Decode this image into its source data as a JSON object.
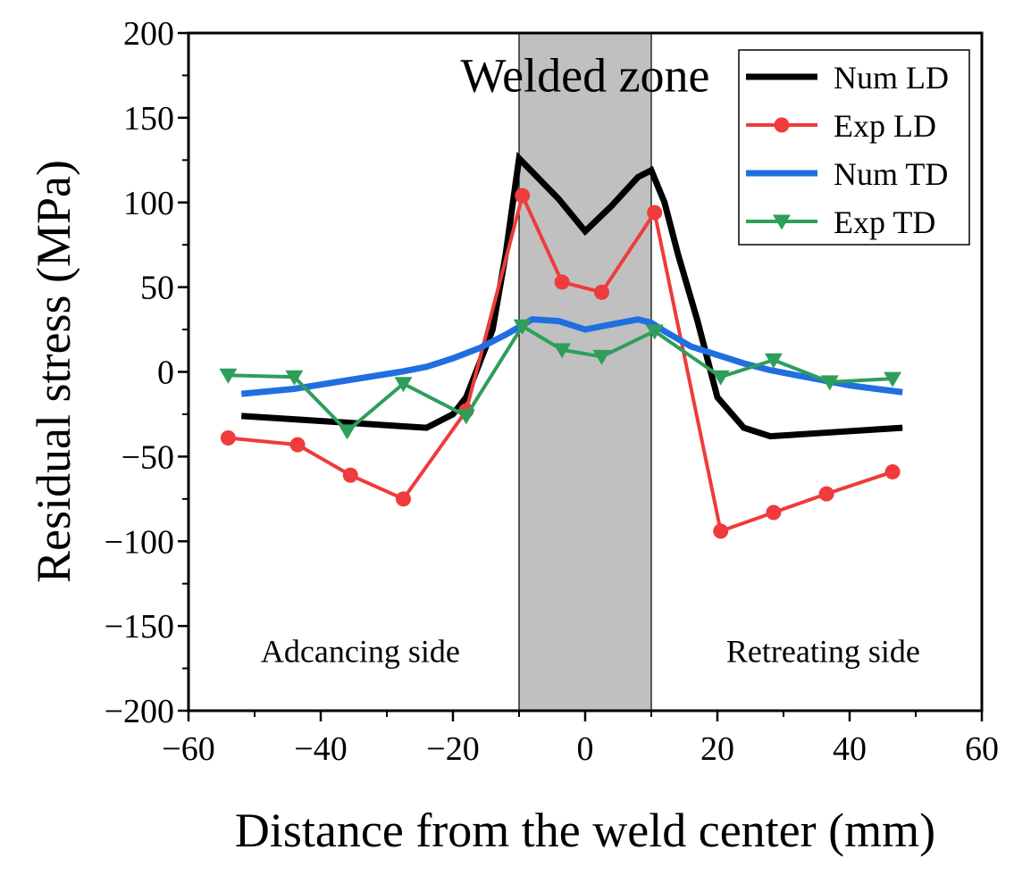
{
  "chart_data": {
    "type": "line",
    "xlabel": "Distance from the weld center (mm)",
    "ylabel": "Residual stress (MPa)",
    "xlim": [
      -60,
      60
    ],
    "ylim": [
      -200,
      200
    ],
    "xticks": [
      -60,
      -40,
      -20,
      0,
      20,
      40,
      60
    ],
    "yticks": [
      -200,
      -150,
      -100,
      -50,
      0,
      50,
      100,
      150,
      200
    ],
    "xtick_labels": [
      "−60",
      "−40",
      "−20",
      "0",
      "20",
      "40",
      "60"
    ],
    "ytick_labels": [
      "−200",
      "−150",
      "−100",
      "−50",
      "0",
      "50",
      "100",
      "150",
      "200"
    ],
    "shaded_region": {
      "x_range": [
        -10,
        10
      ],
      "color": "#c0c0c0",
      "label": "Welded zone"
    },
    "annotations": [
      {
        "text": "Welded zone",
        "x": 0,
        "y": 175
      },
      {
        "text": "Adcancing side",
        "x": -34,
        "y": -165
      },
      {
        "text": "Retreating side",
        "x": 36,
        "y": -165
      }
    ],
    "legend_position": "top-right",
    "series": [
      {
        "name": "Num LD",
        "color": "#000000",
        "marker": "none",
        "width": 7,
        "x": [
          -52,
          -44,
          -36,
          -28,
          -24,
          -20,
          -18,
          -14,
          -12,
          -10,
          -8,
          -4,
          0,
          4,
          8,
          10,
          12,
          14,
          17,
          20,
          24,
          28,
          36,
          44,
          48
        ],
        "y": [
          -26,
          -28,
          -30,
          -32,
          -33,
          -25,
          -15,
          25,
          70,
          126,
          118,
          102,
          83,
          98,
          115,
          119,
          100,
          70,
          30,
          -15,
          -33,
          -38,
          -36,
          -34,
          -33
        ]
      },
      {
        "name": "Exp LD",
        "color": "#ef3b3b",
        "marker": "circle",
        "width": 4,
        "x": [
          -54,
          -43.5,
          -35.5,
          -27.5,
          -18,
          -9.5,
          -3.5,
          2.5,
          10.5,
          20.5,
          28.5,
          36.5,
          46.5
        ],
        "y": [
          -39,
          -43,
          -61,
          -75,
          -23,
          104,
          53,
          47,
          94,
          -94,
          -83,
          -72,
          -59
        ]
      },
      {
        "name": "Num TD",
        "color": "#1f6fe0",
        "marker": "none",
        "width": 7,
        "x": [
          -52,
          -44,
          -36,
          -28,
          -24,
          -20,
          -16,
          -12,
          -8,
          -4,
          0,
          4,
          8,
          10,
          12,
          16,
          20,
          24,
          28,
          32,
          36,
          40,
          44,
          48
        ],
        "y": [
          -13,
          -10,
          -5,
          0,
          3,
          8,
          14,
          22,
          31,
          30,
          25,
          28,
          31,
          29,
          24,
          15,
          10,
          5,
          1,
          -2,
          -5,
          -8,
          -10,
          -12
        ]
      },
      {
        "name": "Exp TD",
        "color": "#2e9e5b",
        "marker": "triangle-down",
        "width": 4,
        "x": [
          -54,
          -44,
          -36,
          -27.5,
          -18,
          -9.5,
          -3.5,
          2.5,
          10.5,
          20.5,
          28.5,
          37,
          46.5
        ],
        "y": [
          -2,
          -3,
          -35,
          -7,
          -26,
          27,
          13,
          9,
          24,
          -3,
          7,
          -6,
          -4
        ]
      }
    ]
  }
}
